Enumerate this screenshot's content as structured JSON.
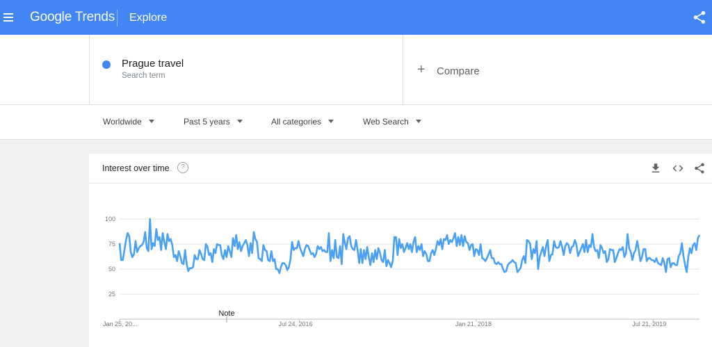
{
  "header": {
    "logo_google": "Google",
    "logo_trends": "Trends",
    "section": "Explore"
  },
  "search": {
    "term": "Prague travel",
    "term_type": "Search term",
    "term_color": "#4285f4",
    "compare_label": "Compare"
  },
  "filters": {
    "region": "Worldwide",
    "period": "Past 5 years",
    "category": "All categories",
    "search_type": "Web Search"
  },
  "card": {
    "title": "Interest over time",
    "help": "?"
  },
  "chart_data": {
    "type": "line",
    "title": "Interest over time",
    "ylim": [
      0,
      100
    ],
    "y_ticks": [
      "25",
      "50",
      "75",
      "100"
    ],
    "x_ticks": [
      "Jan 25, 20...",
      "Jul 24, 2016",
      "Jan 21, 2018",
      "Jul 21, 2019"
    ],
    "note_label": "Note",
    "grid": true,
    "line_color": "#4285f4",
    "series": [
      {
        "values": [
          76,
          59,
          59,
          69,
          79,
          86,
          83,
          67,
          62,
          65,
          78,
          67,
          71,
          73,
          74,
          77,
          87,
          71,
          68,
          100,
          70,
          76,
          73,
          90,
          79,
          82,
          69,
          86,
          77,
          70,
          85,
          78,
          80,
          74,
          62,
          64,
          58,
          68,
          63,
          56,
          55,
          69,
          55,
          48,
          51,
          51,
          52,
          64,
          60,
          60,
          69,
          65,
          60,
          59,
          75,
          72,
          64,
          66,
          57,
          70,
          66,
          75,
          74,
          74,
          64,
          60,
          69,
          62,
          73,
          68,
          62,
          81,
          73,
          84,
          70,
          77,
          68,
          73,
          76,
          79,
          74,
          63,
          76,
          66,
          87,
          80,
          77,
          61,
          60,
          58,
          74,
          69,
          68,
          59,
          58,
          68,
          58,
          60,
          50,
          50,
          46,
          52,
          56,
          56,
          54,
          49,
          52,
          60,
          77,
          69,
          71,
          71,
          78,
          71,
          67,
          63,
          70,
          74,
          73,
          69,
          65,
          66,
          62,
          65,
          73,
          70,
          72,
          68,
          69,
          67,
          67,
          86,
          58,
          69,
          61,
          79,
          62,
          61,
          73,
          55,
          85,
          76,
          70,
          81,
          83,
          73,
          70,
          69,
          79,
          69,
          56,
          70,
          56,
          69,
          60,
          72,
          62,
          54,
          66,
          57,
          69,
          60,
          71,
          66,
          59,
          57,
          69,
          53,
          59,
          56,
          52,
          58,
          82,
          82,
          64,
          80,
          71,
          75,
          67,
          71,
          76,
          70,
          75,
          67,
          77,
          82,
          67,
          73,
          69,
          75,
          63,
          68,
          65,
          58,
          58,
          66,
          69,
          64,
          70,
          78,
          74,
          80,
          70,
          80,
          79,
          84,
          75,
          79,
          77,
          81,
          86,
          73,
          82,
          74,
          84,
          73,
          83,
          77,
          76,
          69,
          74,
          75,
          63,
          70,
          69,
          64,
          75,
          61,
          60,
          58,
          61,
          65,
          69,
          61,
          61,
          56,
          55,
          57,
          55,
          55,
          50,
          47,
          48,
          54,
          56,
          57,
          59,
          57,
          56,
          47,
          49,
          51,
          59,
          63,
          56,
          79,
          78,
          75,
          60,
          70,
          66,
          78,
          50,
          62,
          67,
          72,
          63,
          73,
          79,
          58,
          64,
          65,
          78,
          72,
          71,
          72,
          78,
          72,
          64,
          73,
          76,
          74,
          66,
          72,
          73,
          79,
          74,
          63,
          67,
          71,
          75,
          67,
          79,
          67,
          74,
          72,
          85,
          72,
          68,
          69,
          61,
          74,
          71,
          66,
          68,
          57,
          60,
          70,
          69,
          69,
          57,
          61,
          66,
          70,
          69,
          72,
          62,
          66,
          85,
          71,
          67,
          59,
          66,
          69,
          78,
          69,
          58,
          62,
          70,
          70,
          58,
          61,
          61,
          59,
          59,
          57,
          61,
          56,
          55,
          54,
          61,
          56,
          47,
          60,
          61,
          52,
          56,
          56,
          54,
          54,
          63,
          66,
          76,
          63,
          54,
          47,
          62,
          71,
          66,
          74,
          76,
          69,
          81,
          84
        ]
      }
    ]
  }
}
